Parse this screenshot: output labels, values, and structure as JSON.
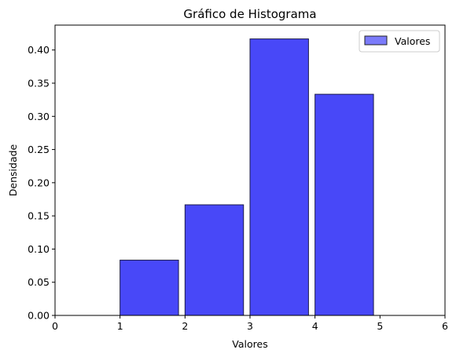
{
  "chart_data": {
    "type": "bar",
    "title": "Gráfico de Histograma",
    "xlabel": "Valores",
    "ylabel": "Densidade",
    "xlim": [
      0,
      6
    ],
    "ylim": [
      0,
      0.4375
    ],
    "xticks": [
      "0",
      "1",
      "2",
      "3",
      "4",
      "5",
      "6"
    ],
    "yticks": [
      "0.00",
      "0.05",
      "0.10",
      "0.15",
      "0.20",
      "0.25",
      "0.30",
      "0.35",
      "0.40"
    ],
    "bins": [
      {
        "start": 1,
        "end": 1.9,
        "value": 0.0833
      },
      {
        "start": 2,
        "end": 2.9,
        "value": 0.1667
      },
      {
        "start": 3,
        "end": 3.9,
        "value": 0.4167
      },
      {
        "start": 4,
        "end": 4.9,
        "value": 0.3333
      }
    ],
    "series": [
      {
        "name": "Valores",
        "color": "#4848f8"
      }
    ],
    "legend_position": "top-right",
    "grid": false
  }
}
